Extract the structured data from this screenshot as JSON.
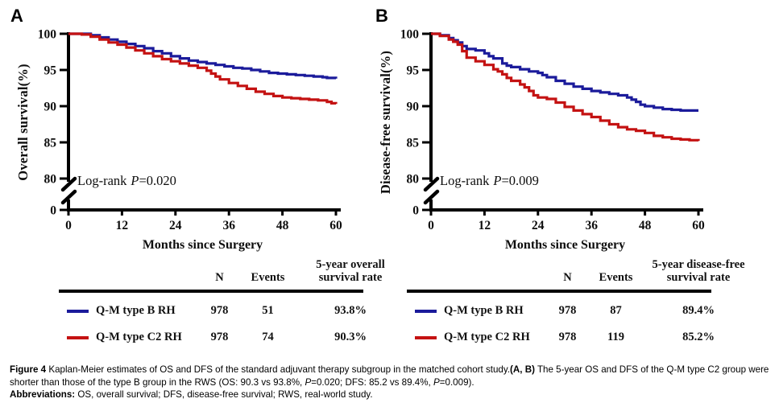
{
  "figure": {
    "panels": [
      {
        "label": "A",
        "logrank_text": "Log-rank",
        "logrank_p": "P",
        "logrank_value": "=0.020",
        "table": {
          "n": "N",
          "events": "Events",
          "rate_line1": "5-year overall",
          "rate_line2": "survival rate"
        }
      },
      {
        "label": "B",
        "logrank_text": "Log-rank",
        "logrank_p": "P",
        "logrank_value": "=0.009",
        "table": {
          "n": "N",
          "events": "Events",
          "rate_line1": "5-year disease-free",
          "rate_line2": "survival rate"
        }
      }
    ],
    "caption": {
      "fig_label": "Figure 4",
      "text_a": " Kaplan-Meier estimates of OS and DFS of the standard adjuvant therapy subgroup in the matched cohort study.",
      "ab_label": "(A, B)",
      "text_b": " The 5-year OS and DFS of the Q-M type C2 group were shorter than those of the type B group in the RWS (OS: 90.3 vs 93.8%, ",
      "p": "P",
      "text_c": "=0.020; DFS: 85.2 vs 89.4%, ",
      "text_d": "=0.009).",
      "abbrev_label": "Abbreviations:",
      "abbrev_text": " OS, overall survival; DFS, disease-free survival; RWS, real-world study."
    }
  },
  "chart_data": [
    {
      "type": "line",
      "variant": "kaplan_meier_step",
      "panel": "A",
      "xlabel": "Months since Surgery",
      "ylabel": "Overall survival(%)",
      "x_ticks": [
        0,
        12,
        24,
        36,
        48,
        60
      ],
      "y_ticks": [
        100,
        95,
        90,
        85,
        80,
        0
      ],
      "xlim": [
        0,
        60
      ],
      "y_axis_break_between": [
        0,
        80
      ],
      "annotation": "Log-rank P=0.020",
      "grid": false,
      "legend_position": "table-below",
      "series": [
        {
          "name": "Q-M type B RH",
          "color": "#1b1b9b",
          "n": "978",
          "events": "51",
          "rate": "93.8%",
          "points": [
            [
              0,
              100
            ],
            [
              4,
              100
            ],
            [
              5,
              99.8
            ],
            [
              7,
              99.5
            ],
            [
              9,
              99.2
            ],
            [
              11,
              98.9
            ],
            [
              13,
              98.6
            ],
            [
              15,
              98.3
            ],
            [
              17,
              98.0
            ],
            [
              19,
              97.6
            ],
            [
              21,
              97.3
            ],
            [
              23,
              96.9
            ],
            [
              25,
              96.6
            ],
            [
              27,
              96.3
            ],
            [
              29,
              96.1
            ],
            [
              31,
              95.9
            ],
            [
              33,
              95.7
            ],
            [
              35,
              95.5
            ],
            [
              37,
              95.3
            ],
            [
              39,
              95.2
            ],
            [
              41,
              95.0
            ],
            [
              43,
              94.8
            ],
            [
              45,
              94.6
            ],
            [
              47,
              94.5
            ],
            [
              49,
              94.4
            ],
            [
              51,
              94.3
            ],
            [
              53,
              94.2
            ],
            [
              55,
              94.1
            ],
            [
              57,
              94.0
            ],
            [
              58,
              93.9
            ],
            [
              60,
              93.8
            ]
          ]
        },
        {
          "name": "Q-M type C2 RH",
          "color": "#c41212",
          "n": "978",
          "events": "74",
          "rate": "90.3%",
          "points": [
            [
              0,
              100
            ],
            [
              3,
              99.9
            ],
            [
              5,
              99.6
            ],
            [
              7,
              99.2
            ],
            [
              9,
              98.8
            ],
            [
              11,
              98.5
            ],
            [
              13,
              98.1
            ],
            [
              15,
              97.7
            ],
            [
              17,
              97.3
            ],
            [
              19,
              96.9
            ],
            [
              21,
              96.5
            ],
            [
              23,
              96.2
            ],
            [
              25,
              95.9
            ],
            [
              27,
              95.6
            ],
            [
              29,
              95.3
            ],
            [
              31,
              94.9
            ],
            [
              32,
              94.5
            ],
            [
              33,
              94.1
            ],
            [
              34,
              93.7
            ],
            [
              36,
              93.2
            ],
            [
              38,
              92.8
            ],
            [
              40,
              92.4
            ],
            [
              42,
              92.0
            ],
            [
              44,
              91.7
            ],
            [
              46,
              91.4
            ],
            [
              48,
              91.2
            ],
            [
              50,
              91.1
            ],
            [
              52,
              91.0
            ],
            [
              54,
              90.9
            ],
            [
              56,
              90.8
            ],
            [
              58,
              90.6
            ],
            [
              59,
              90.4
            ],
            [
              60,
              90.3
            ]
          ]
        }
      ]
    },
    {
      "type": "line",
      "variant": "kaplan_meier_step",
      "panel": "B",
      "xlabel": "Months since Surgery",
      "ylabel": "Disease-free survival(%)",
      "x_ticks": [
        0,
        12,
        24,
        36,
        48,
        60
      ],
      "y_ticks": [
        100,
        95,
        90,
        85,
        80,
        0
      ],
      "xlim": [
        0,
        60
      ],
      "y_axis_break_between": [
        0,
        80
      ],
      "annotation": "Log-rank P=0.009",
      "grid": false,
      "legend_position": "table-below",
      "series": [
        {
          "name": "Q-M type B RH",
          "color": "#1b1b9b",
          "n": "978",
          "events": "87",
          "rate": "89.4%",
          "points": [
            [
              0,
              100
            ],
            [
              2,
              99.8
            ],
            [
              4,
              99.4
            ],
            [
              5,
              99.1
            ],
            [
              6,
              98.8
            ],
            [
              7,
              98.3
            ],
            [
              8,
              97.9
            ],
            [
              10,
              97.7
            ],
            [
              12,
              97.3
            ],
            [
              13,
              96.9
            ],
            [
              14,
              96.6
            ],
            [
              16,
              95.9
            ],
            [
              17,
              95.6
            ],
            [
              18,
              95.4
            ],
            [
              20,
              95.1
            ],
            [
              22,
              94.8
            ],
            [
              24,
              94.6
            ],
            [
              25,
              94.3
            ],
            [
              26,
              94.0
            ],
            [
              28,
              93.5
            ],
            [
              30,
              93.1
            ],
            [
              32,
              92.7
            ],
            [
              34,
              92.4
            ],
            [
              36,
              92.1
            ],
            [
              38,
              91.9
            ],
            [
              40,
              91.7
            ],
            [
              42,
              91.5
            ],
            [
              44,
              91.2
            ],
            [
              45,
              90.9
            ],
            [
              46,
              90.6
            ],
            [
              47,
              90.2
            ],
            [
              48,
              90.0
            ],
            [
              50,
              89.8
            ],
            [
              52,
              89.6
            ],
            [
              54,
              89.5
            ],
            [
              56,
              89.4
            ],
            [
              60,
              89.4
            ]
          ]
        },
        {
          "name": "Q-M type C2 RH",
          "color": "#c41212",
          "n": "978",
          "events": "119",
          "rate": "85.2%",
          "points": [
            [
              0,
              100
            ],
            [
              2,
              99.7
            ],
            [
              4,
              99.2
            ],
            [
              5,
              98.9
            ],
            [
              6,
              98.5
            ],
            [
              7,
              97.6
            ],
            [
              8,
              96.7
            ],
            [
              10,
              96.2
            ],
            [
              12,
              95.7
            ],
            [
              14,
              95.1
            ],
            [
              15,
              94.8
            ],
            [
              16,
              94.4
            ],
            [
              17,
              93.9
            ],
            [
              18,
              93.5
            ],
            [
              20,
              93.0
            ],
            [
              21,
              92.6
            ],
            [
              22,
              92.1
            ],
            [
              23,
              91.5
            ],
            [
              24,
              91.2
            ],
            [
              26,
              91.0
            ],
            [
              28,
              90.5
            ],
            [
              30,
              89.9
            ],
            [
              32,
              89.4
            ],
            [
              34,
              88.9
            ],
            [
              36,
              88.5
            ],
            [
              38,
              88.0
            ],
            [
              40,
              87.5
            ],
            [
              42,
              87.1
            ],
            [
              44,
              86.8
            ],
            [
              46,
              86.6
            ],
            [
              48,
              86.3
            ],
            [
              50,
              85.9
            ],
            [
              52,
              85.7
            ],
            [
              54,
              85.5
            ],
            [
              56,
              85.4
            ],
            [
              58,
              85.3
            ],
            [
              60,
              85.2
            ]
          ]
        }
      ]
    }
  ]
}
